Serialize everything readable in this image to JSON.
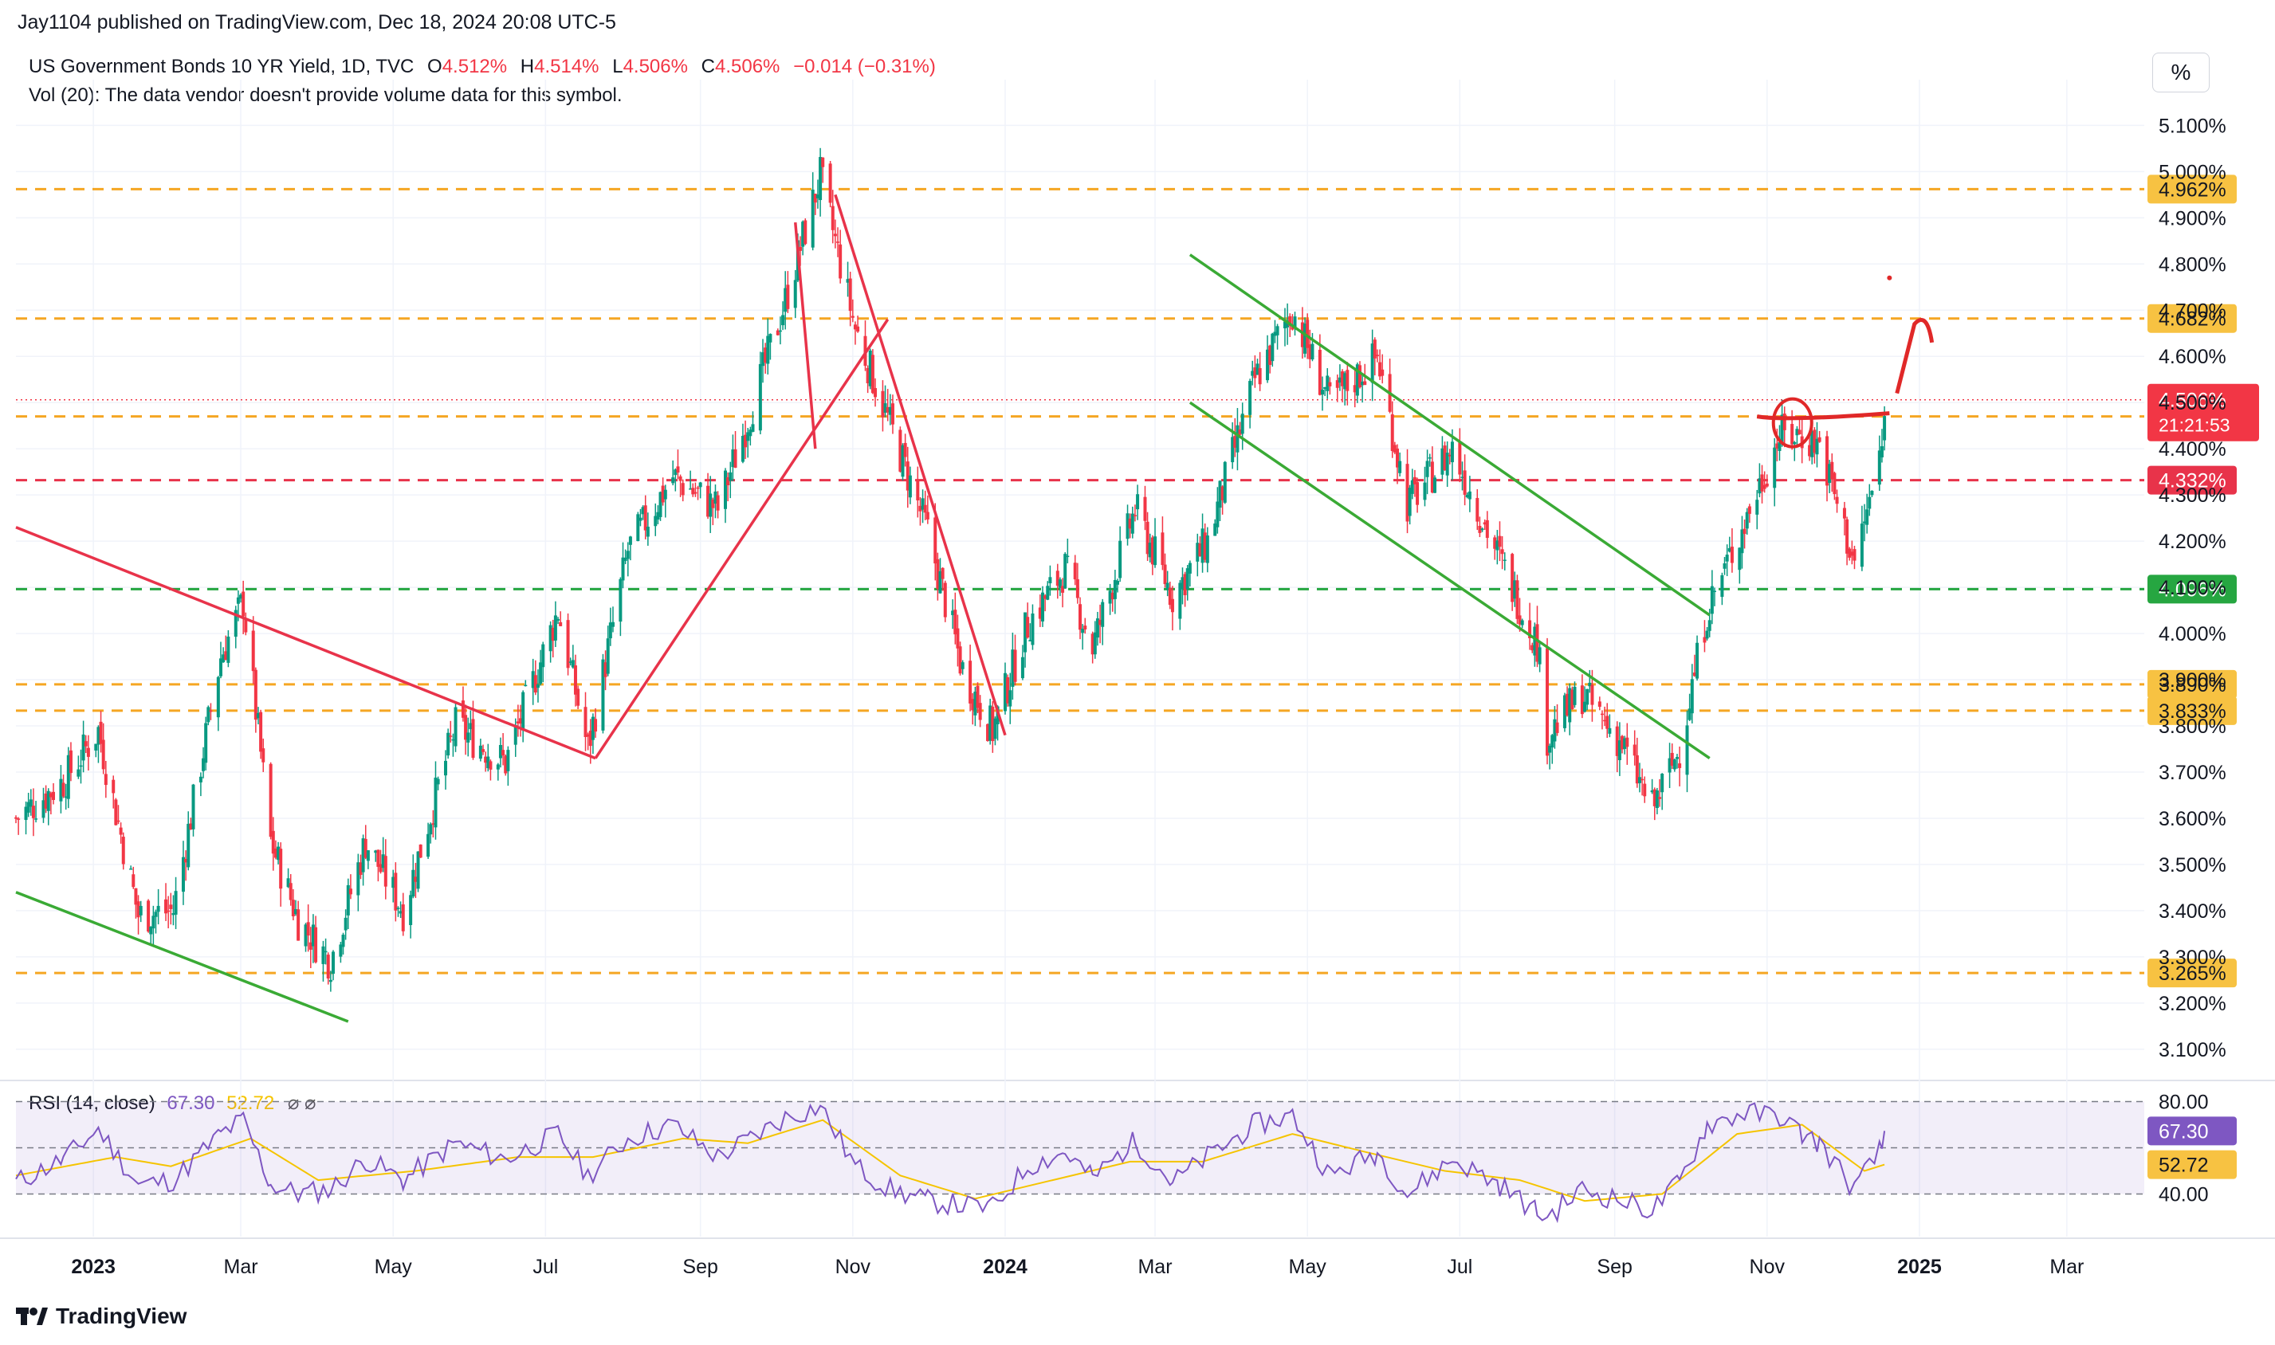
{
  "header": {
    "publisher": "Jay1104 published on TradingView.com, Dec 18, 2024 20:08 UTC-5",
    "symbol_line": "US Government Bonds 10 YR Yield, 1D, TVC",
    "ohlc": [
      {
        "k": "O",
        "v": "4.512%"
      },
      {
        "k": "H",
        "v": "4.514%"
      },
      {
        "k": "L",
        "v": "4.506%"
      },
      {
        "k": "C",
        "v": "4.506%"
      }
    ],
    "change": "−0.014 (−0.31%)",
    "volume_note": "Vol (20): The data vendor doesn't provide volume data for this symbol."
  },
  "toolbar": {
    "scale_button": "%"
  },
  "rsi": {
    "label": "RSI (14, close)",
    "value": "67.30",
    "ma_value": "52.72",
    "icons": "⌀ ⌀",
    "levels": [
      "80.00",
      "40.00"
    ]
  },
  "footer": {
    "brand": "TradingView"
  },
  "colors": {
    "up": "#089981",
    "down": "#f23645",
    "orange_level": "#f5a623",
    "red_level": "#e8334a",
    "green_level": "#26a641",
    "rsi_line": "#7e57c2",
    "rsi_ma": "#f5c400",
    "trend_red": "#e8334a",
    "trend_green": "#3aaa35"
  },
  "chart_data": {
    "type": "candlestick",
    "title": "US Government Bonds 10 YR Yield, 1D, TVC",
    "ylim": [
      3.06,
      5.13
    ],
    "y_ticks": [
      "5.100%",
      "5.000%",
      "4.900%",
      "4.800%",
      "4.700%",
      "4.600%",
      "4.500%",
      "4.400%",
      "4.300%",
      "4.200%",
      "4.100%",
      "4.000%",
      "3.900%",
      "3.800%",
      "3.700%",
      "3.600%",
      "3.500%",
      "3.400%",
      "3.300%",
      "3.200%",
      "3.100%"
    ],
    "x_ticks": [
      "2023",
      "Mar",
      "May",
      "Jul",
      "Sep",
      "Nov",
      "2024",
      "Mar",
      "May",
      "Jul",
      "Sep",
      "Nov",
      "2025",
      "Mar"
    ],
    "x_tick_dates": [
      "2023-01-01",
      "2023-03-01",
      "2023-05-01",
      "2023-07-01",
      "2023-09-01",
      "2023-11-01",
      "2024-01-01",
      "2024-03-01",
      "2024-05-01",
      "2024-07-01",
      "2024-09-01",
      "2024-11-01",
      "2025-01-01",
      "2025-03-01"
    ],
    "x_range": [
      "2022-12-01",
      "2025-04-01"
    ],
    "closes_path": [
      [
        "2022-12-01",
        3.6
      ],
      [
        "2022-12-20",
        3.68
      ],
      [
        "2023-01-03",
        3.79
      ],
      [
        "2023-01-19",
        3.39
      ],
      [
        "2023-02-02",
        3.4
      ],
      [
        "2023-02-21",
        3.95
      ],
      [
        "2023-03-02",
        4.07
      ],
      [
        "2023-03-13",
        3.55
      ],
      [
        "2023-03-24",
        3.38
      ],
      [
        "2023-04-06",
        3.29
      ],
      [
        "2023-04-20",
        3.55
      ],
      [
        "2023-05-05",
        3.4
      ],
      [
        "2023-05-26",
        3.8
      ],
      [
        "2023-06-15",
        3.72
      ],
      [
        "2023-07-06",
        4.05
      ],
      [
        "2023-07-18",
        3.75
      ],
      [
        "2023-08-03",
        4.18
      ],
      [
        "2023-08-21",
        4.34
      ],
      [
        "2023-09-08",
        4.27
      ],
      [
        "2023-09-21",
        4.48
      ],
      [
        "2023-10-05",
        4.72
      ],
      [
        "2023-10-19",
        4.99
      ],
      [
        "2023-11-02",
        4.66
      ],
      [
        "2023-11-16",
        4.45
      ],
      [
        "2023-12-01",
        4.22
      ],
      [
        "2023-12-15",
        3.92
      ],
      [
        "2023-12-27",
        3.79
      ],
      [
        "2024-01-10",
        4.02
      ],
      [
        "2024-01-25",
        4.14
      ],
      [
        "2024-02-05",
        3.97
      ],
      [
        "2024-02-22",
        4.27
      ],
      [
        "2024-03-08",
        4.08
      ],
      [
        "2024-03-22",
        4.2
      ],
      [
        "2024-04-10",
        4.55
      ],
      [
        "2024-04-25",
        4.7
      ],
      [
        "2024-05-10",
        4.5
      ],
      [
        "2024-05-29",
        4.6
      ],
      [
        "2024-06-10",
        4.28
      ],
      [
        "2024-06-28",
        4.4
      ],
      [
        "2024-07-17",
        4.16
      ],
      [
        "2024-08-01",
        3.98
      ],
      [
        "2024-08-05",
        3.78
      ],
      [
        "2024-08-19",
        3.87
      ],
      [
        "2024-09-04",
        3.76
      ],
      [
        "2024-09-16",
        3.62
      ],
      [
        "2024-09-27",
        3.75
      ],
      [
        "2024-10-08",
        4.05
      ],
      [
        "2024-10-23",
        4.24
      ],
      [
        "2024-11-06",
        4.43
      ],
      [
        "2024-11-15",
        4.43
      ],
      [
        "2024-11-22",
        4.41
      ],
      [
        "2024-12-06",
        4.15
      ],
      [
        "2024-12-17",
        4.4
      ],
      [
        "2024-12-18",
        4.506
      ]
    ],
    "levels": [
      {
        "value": 4.962,
        "label": "4.962%",
        "color": "orange"
      },
      {
        "value": 4.682,
        "label": "4.682%",
        "color": "orange"
      },
      {
        "value": 4.47,
        "label": "4.470%",
        "color": "orange"
      },
      {
        "value": 4.332,
        "label": "4.332%",
        "color": "red"
      },
      {
        "value": 4.096,
        "label": "4.096%",
        "color": "green"
      },
      {
        "value": 3.89,
        "label": "3.890%",
        "color": "orange"
      },
      {
        "value": 3.833,
        "label": "3.833%",
        "color": "orange"
      },
      {
        "value": 3.265,
        "label": "3.265%",
        "color": "orange"
      }
    ],
    "last_price": {
      "value": 4.506,
      "label": "4.506%",
      "countdown": "21:21:53"
    },
    "rsi": {
      "ylim": [
        25,
        85
      ],
      "upper": 80,
      "lower": 40,
      "path": [
        [
          "2022-12-01",
          45
        ],
        [
          "2022-12-20",
          55
        ],
        [
          "2023-01-03",
          68
        ],
        [
          "2023-01-19",
          44
        ],
        [
          "2023-02-02",
          46
        ],
        [
          "2023-02-21",
          66
        ],
        [
          "2023-03-02",
          72
        ],
        [
          "2023-03-13",
          44
        ],
        [
          "2023-03-24",
          40
        ],
        [
          "2023-04-06",
          42
        ],
        [
          "2023-04-20",
          55
        ],
        [
          "2023-05-05",
          46
        ],
        [
          "2023-05-26",
          62
        ],
        [
          "2023-06-15",
          55
        ],
        [
          "2023-07-06",
          66
        ],
        [
          "2023-07-18",
          48
        ],
        [
          "2023-08-03",
          64
        ],
        [
          "2023-08-21",
          70
        ],
        [
          "2023-09-08",
          56
        ],
        [
          "2023-09-21",
          64
        ],
        [
          "2023-10-05",
          73
        ],
        [
          "2023-10-19",
          78
        ],
        [
          "2023-11-02",
          52
        ],
        [
          "2023-11-16",
          42
        ],
        [
          "2023-12-01",
          37
        ],
        [
          "2023-12-15",
          35
        ],
        [
          "2023-12-27",
          34
        ],
        [
          "2024-01-10",
          52
        ],
        [
          "2024-01-25",
          58
        ],
        [
          "2024-02-05",
          47
        ],
        [
          "2024-02-22",
          63
        ],
        [
          "2024-03-08",
          45
        ],
        [
          "2024-03-22",
          56
        ],
        [
          "2024-04-10",
          70
        ],
        [
          "2024-04-25",
          74
        ],
        [
          "2024-05-10",
          48
        ],
        [
          "2024-05-29",
          58
        ],
        [
          "2024-06-10",
          40
        ],
        [
          "2024-06-28",
          55
        ],
        [
          "2024-07-17",
          44
        ],
        [
          "2024-08-01",
          32
        ],
        [
          "2024-08-05",
          30
        ],
        [
          "2024-08-19",
          42
        ],
        [
          "2024-09-04",
          37
        ],
        [
          "2024-09-16",
          33
        ],
        [
          "2024-09-27",
          45
        ],
        [
          "2024-10-08",
          70
        ],
        [
          "2024-10-23",
          75
        ],
        [
          "2024-11-06",
          74
        ],
        [
          "2024-11-15",
          66
        ],
        [
          "2024-11-22",
          62
        ],
        [
          "2024-12-06",
          42
        ],
        [
          "2024-12-17",
          60
        ],
        [
          "2024-12-18",
          67.3
        ]
      ],
      "ma_path": [
        [
          "2022-12-01",
          48
        ],
        [
          "2023-01-10",
          56
        ],
        [
          "2023-02-01",
          52
        ],
        [
          "2023-03-05",
          64
        ],
        [
          "2023-04-01",
          46
        ],
        [
          "2023-05-10",
          50
        ],
        [
          "2023-06-20",
          56
        ],
        [
          "2023-07-20",
          56
        ],
        [
          "2023-08-25",
          64
        ],
        [
          "2023-09-20",
          62
        ],
        [
          "2023-10-20",
          72
        ],
        [
          "2023-11-20",
          48
        ],
        [
          "2023-12-20",
          38
        ],
        [
          "2024-01-20",
          46
        ],
        [
          "2024-02-20",
          54
        ],
        [
          "2024-03-20",
          54
        ],
        [
          "2024-04-25",
          66
        ],
        [
          "2024-05-25",
          58
        ],
        [
          "2024-06-25",
          50
        ],
        [
          "2024-07-25",
          46
        ],
        [
          "2024-08-20",
          37
        ],
        [
          "2024-09-20",
          40
        ],
        [
          "2024-10-20",
          66
        ],
        [
          "2024-11-15",
          70
        ],
        [
          "2024-12-10",
          50
        ],
        [
          "2024-12-18",
          52.72
        ]
      ]
    },
    "trendlines": [
      {
        "color": "red",
        "from": [
          "2022-12-01",
          4.23
        ],
        "to": [
          "2023-07-21",
          3.73
        ]
      },
      {
        "color": "red",
        "from": [
          "2023-07-21",
          3.73
        ],
        "to": [
          "2023-11-15",
          4.68
        ]
      },
      {
        "color": "red",
        "from": [
          "2023-10-09",
          4.89
        ],
        "to": [
          "2023-10-17",
          4.4
        ]
      },
      {
        "color": "red",
        "from": [
          "2023-10-25",
          4.95
        ],
        "to": [
          "2024-01-01",
          3.78
        ]
      },
      {
        "color": "green",
        "from": [
          "2022-12-01",
          3.44
        ],
        "to": [
          "2023-04-13",
          3.16
        ]
      },
      {
        "color": "green",
        "from": [
          "2024-03-15",
          4.82
        ],
        "to": [
          "2024-10-09",
          4.04
        ]
      },
      {
        "color": "green",
        "from": [
          "2024-03-15",
          4.5
        ],
        "to": [
          "2024-10-09",
          3.73
        ]
      }
    ]
  }
}
